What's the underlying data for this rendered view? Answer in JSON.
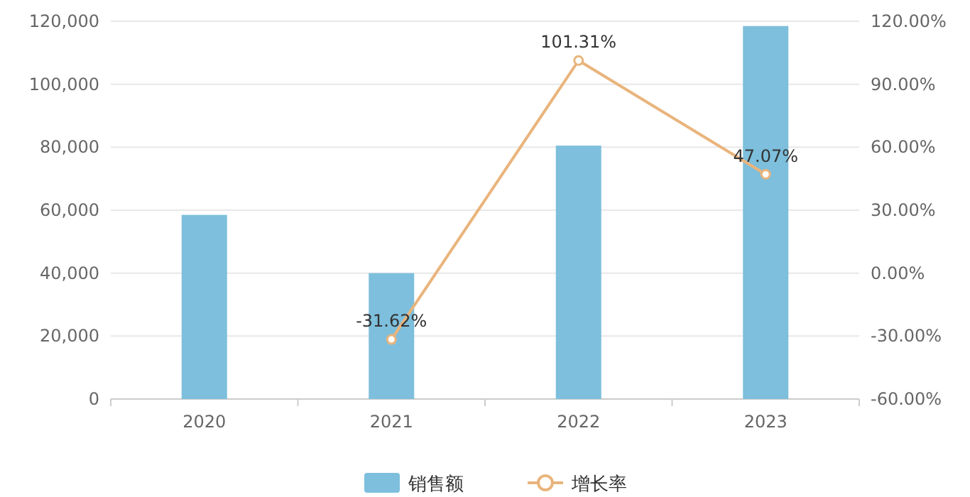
{
  "chart_data": {
    "type": "bar",
    "categories": [
      "2020",
      "2021",
      "2022",
      "2023"
    ],
    "series": [
      {
        "name": "销售额",
        "color": "#7dbfdc",
        "values": [
          58500,
          40000,
          80500,
          118500
        ]
      },
      {
        "name": "增长率",
        "type": "line",
        "axis": "y2",
        "color": "#e9b47c",
        "values": [
          null,
          -31.62,
          101.31,
          47.07
        ],
        "value_labels": [
          null,
          "-31.62%",
          "101.31%",
          "47.07%"
        ]
      }
    ],
    "ylim": [
      0,
      120000
    ],
    "yticks": [
      {
        "value": 0,
        "label": "0"
      },
      {
        "value": 20000,
        "label": "20,000"
      },
      {
        "value": 40000,
        "label": "40,000"
      },
      {
        "value": 60000,
        "label": "60,000"
      },
      {
        "value": 80000,
        "label": "80,000"
      },
      {
        "value": 100000,
        "label": "100,000"
      },
      {
        "value": 120000,
        "label": "120,000"
      }
    ],
    "y2lim": [
      -60,
      120
    ],
    "y2ticks": [
      {
        "value": -60,
        "label": "-60.00%"
      },
      {
        "value": -30,
        "label": "-30.00%"
      },
      {
        "value": 0,
        "label": "0.00%"
      },
      {
        "value": 30,
        "label": "30.00%"
      },
      {
        "value": 60,
        "label": "60.00%"
      },
      {
        "value": 90,
        "label": "90.00%"
      },
      {
        "value": 120,
        "label": "120.00%"
      }
    ],
    "grid": "y",
    "legend": "bottom",
    "marker": "circle"
  }
}
